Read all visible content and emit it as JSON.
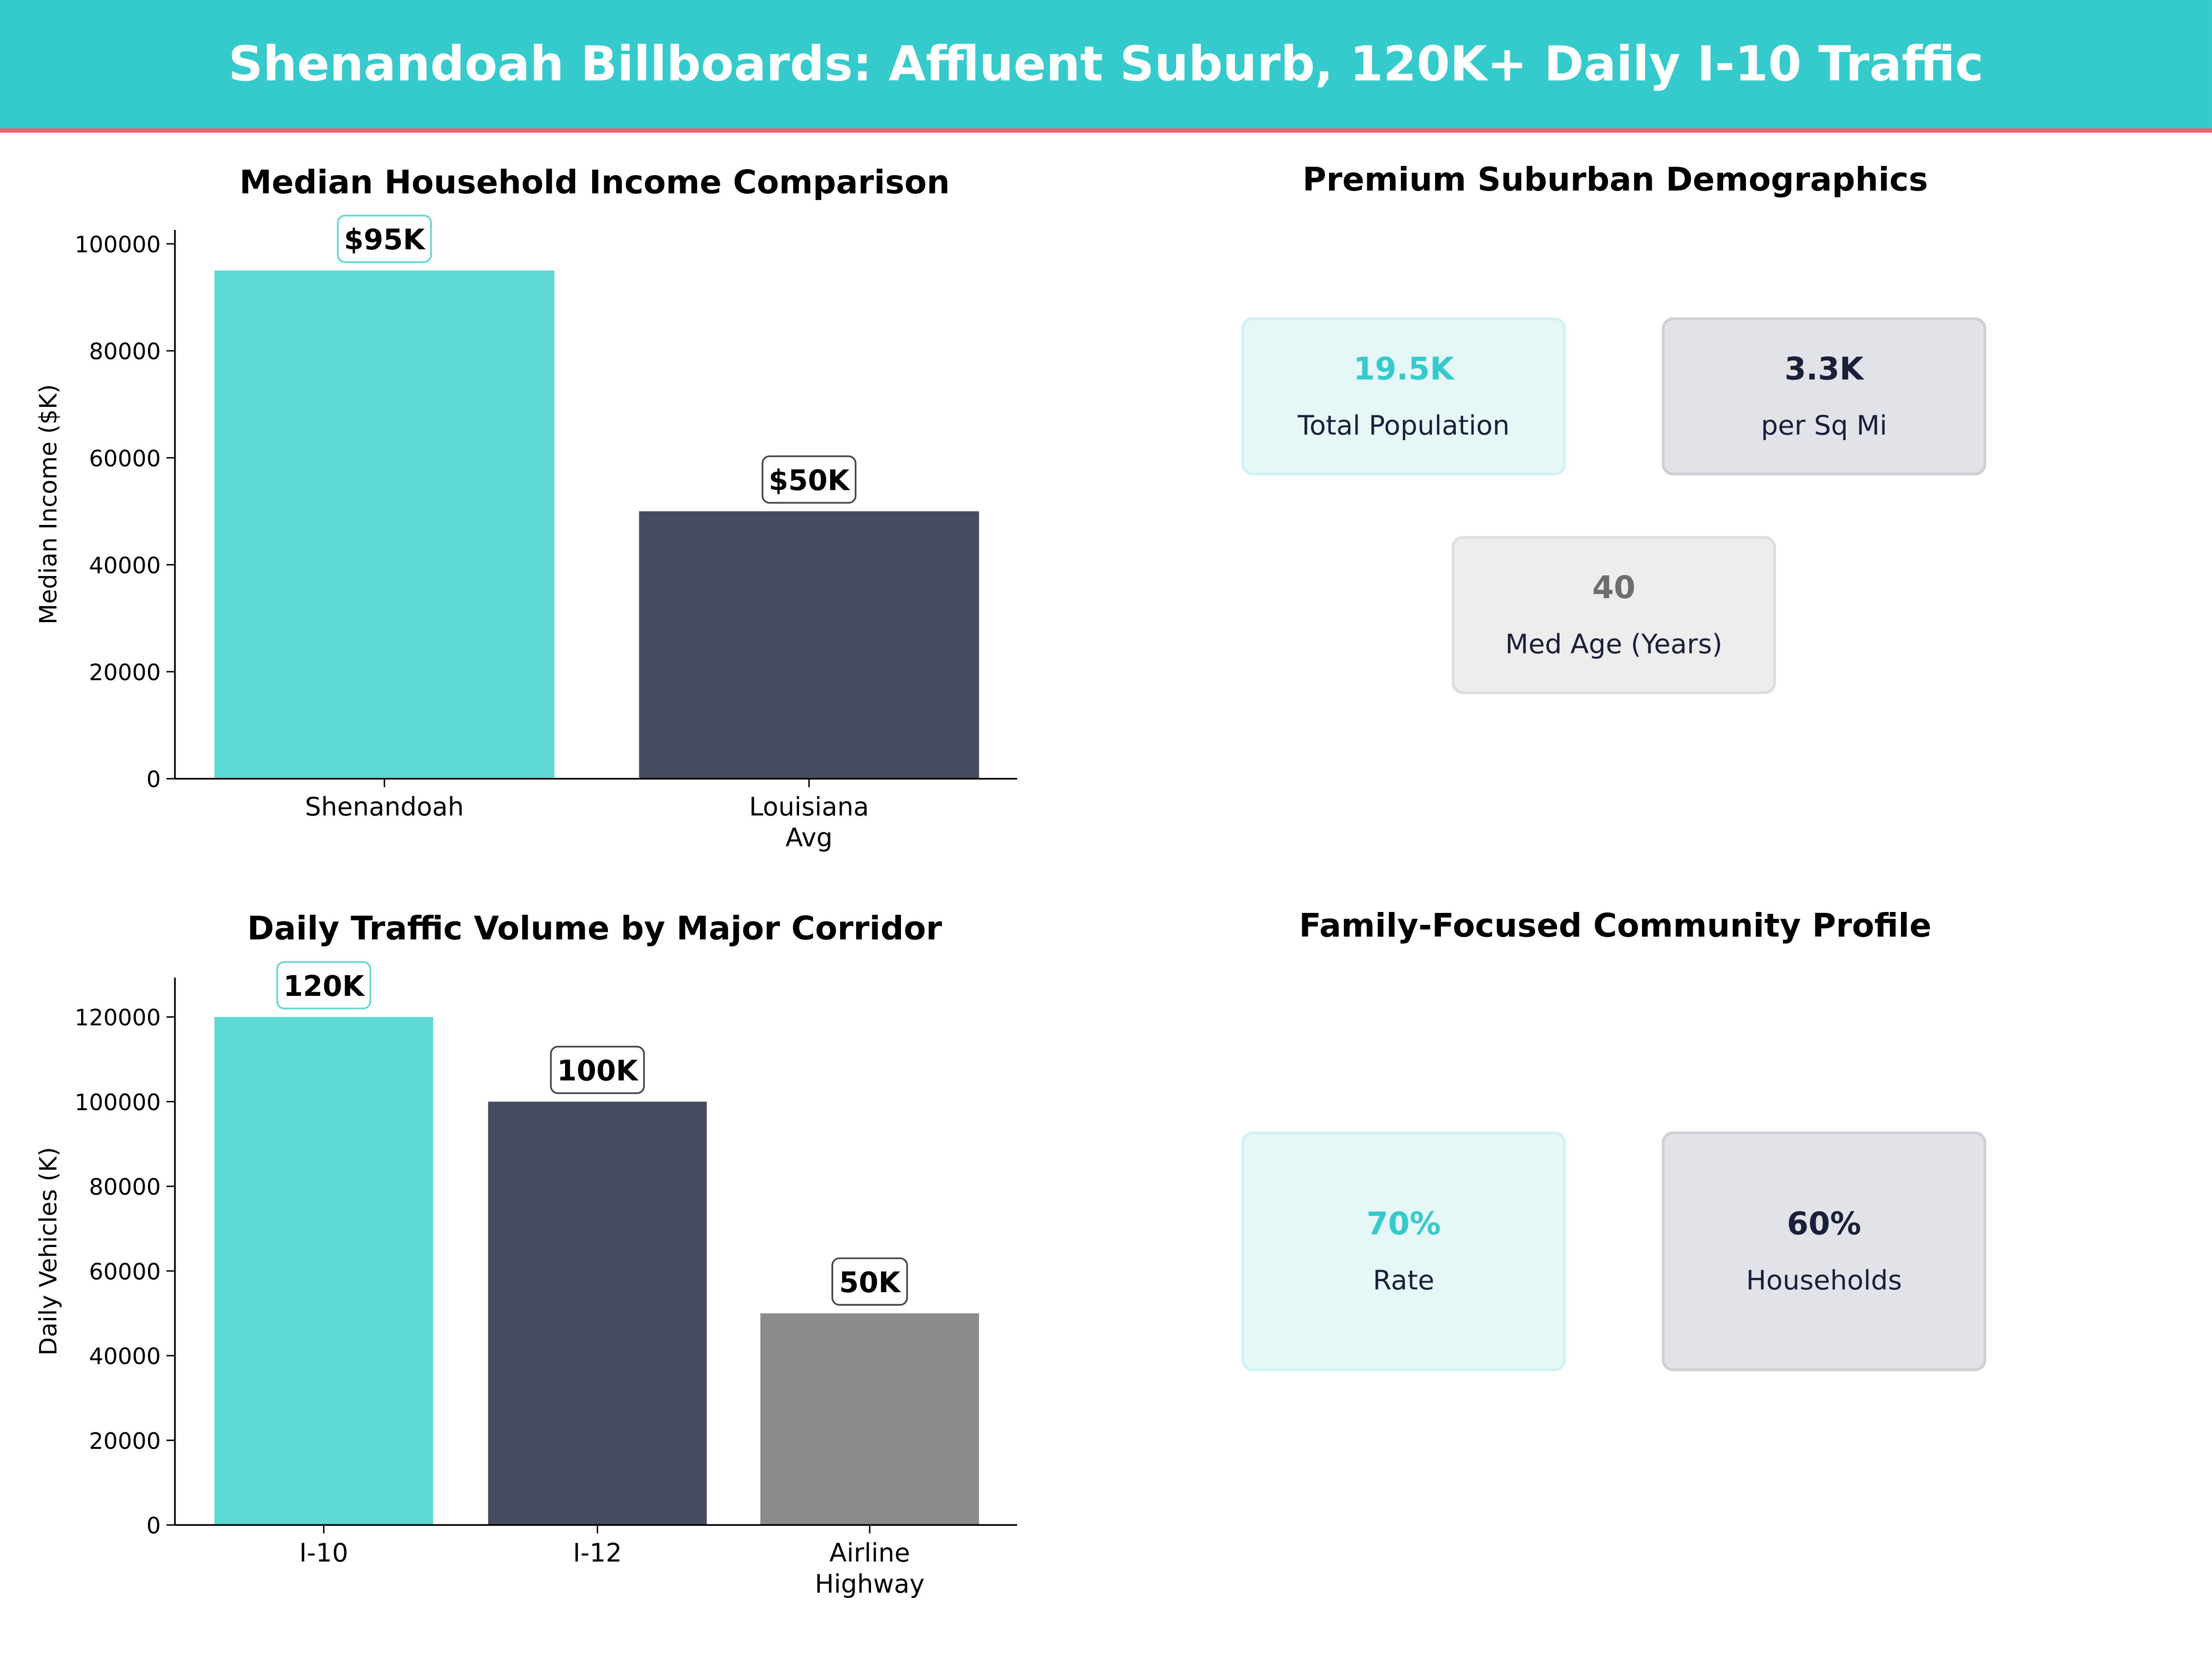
{
  "header": {
    "title": "Shenandoah Billboards: Affluent Suburb, 120K+ Daily I-10 Traffic"
  },
  "colors": {
    "teal": "#5dd8d5",
    "navy": "#464b60",
    "gray": "#8b8b8b",
    "header_bg": "#35cbcc",
    "header_border": "#ef5e6e"
  },
  "chart_data": [
    {
      "type": "bar",
      "title": "Median Household Income Comparison",
      "xlabel": "",
      "ylabel": "Median Income ($K)",
      "categories": [
        "Shenandoah",
        "Louisiana\nAvg"
      ],
      "values": [
        95000,
        50000
      ],
      "data_labels": [
        "$95K",
        "$50K"
      ],
      "bar_colors": [
        "#5dd8d5",
        "#464b60"
      ],
      "yticks": [
        0,
        20000,
        40000,
        60000,
        80000,
        100000
      ],
      "ylim": [
        0,
        102600
      ],
      "grid": false
    },
    {
      "type": "bar",
      "title": "Daily Traffic Volume by Major Corridor",
      "xlabel": "",
      "ylabel": "Daily Vehicles (K)",
      "categories": [
        "I-10",
        "I-12",
        "Airline\nHighway"
      ],
      "values": [
        120000,
        100000,
        50000
      ],
      "data_labels": [
        "120K",
        "100K",
        "50K"
      ],
      "bar_colors": [
        "#5dd8d5",
        "#464b60",
        "#8b8b8b"
      ],
      "yticks": [
        0,
        20000,
        40000,
        60000,
        80000,
        100000,
        120000
      ],
      "ylim": [
        0,
        129300
      ],
      "grid": false
    }
  ],
  "demographics": {
    "title": "Premium Suburban Demographics",
    "cards": [
      {
        "value": "19.5K",
        "label": "Total Population",
        "value_color": "#35cbcc"
      },
      {
        "value": "3.3K",
        "label": "per Sq Mi",
        "value_color": "#1a1f3a"
      },
      {
        "value": "40",
        "label": "Med Age (Years)",
        "value_color": "#6e6e6e"
      }
    ]
  },
  "community": {
    "title": "Family-Focused Community Profile",
    "cards": [
      {
        "value": "70%",
        "label": "Rate",
        "value_color": "#35cbcc"
      },
      {
        "value": "60%",
        "label": "Households",
        "value_color": "#1a1f3a"
      }
    ]
  }
}
